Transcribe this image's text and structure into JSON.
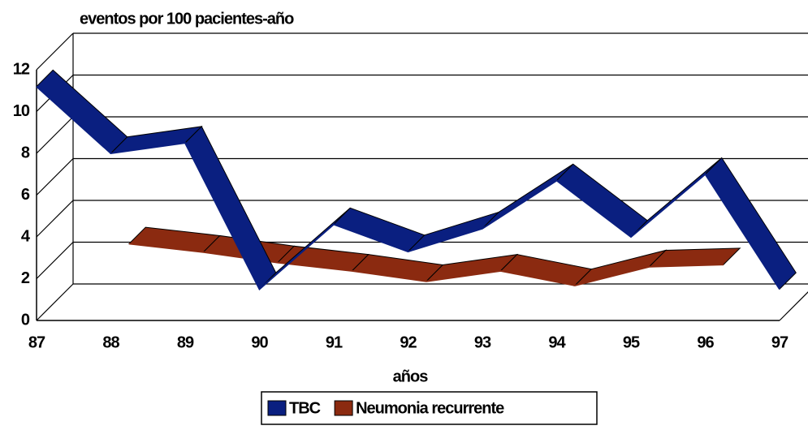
{
  "chart_data": {
    "type": "line3d",
    "y_axis_title": "eventos por 100 pacientes-año",
    "x_axis_title": "años",
    "categories": [
      "87",
      "88",
      "89",
      "90",
      "91",
      "92",
      "93",
      "94",
      "95",
      "96",
      "97"
    ],
    "series": [
      {
        "name": "TBC",
        "color": "#0a1f80",
        "values": [
          11.2,
          8.0,
          8.5,
          1.5,
          4.6,
          3.3,
          4.4,
          6.7,
          4.0,
          7.0,
          1.5
        ]
      },
      {
        "name": "Neumonia recurrente",
        "color": "#8b2a10",
        "values": [
          null,
          2.8,
          2.4,
          1.9,
          1.5,
          1.0,
          1.5,
          0.8,
          1.7,
          1.8,
          null
        ]
      }
    ],
    "ylim": [
      0,
      12
    ],
    "yticks": [
      0,
      2,
      4,
      6,
      8,
      10,
      12
    ],
    "grid": true
  }
}
